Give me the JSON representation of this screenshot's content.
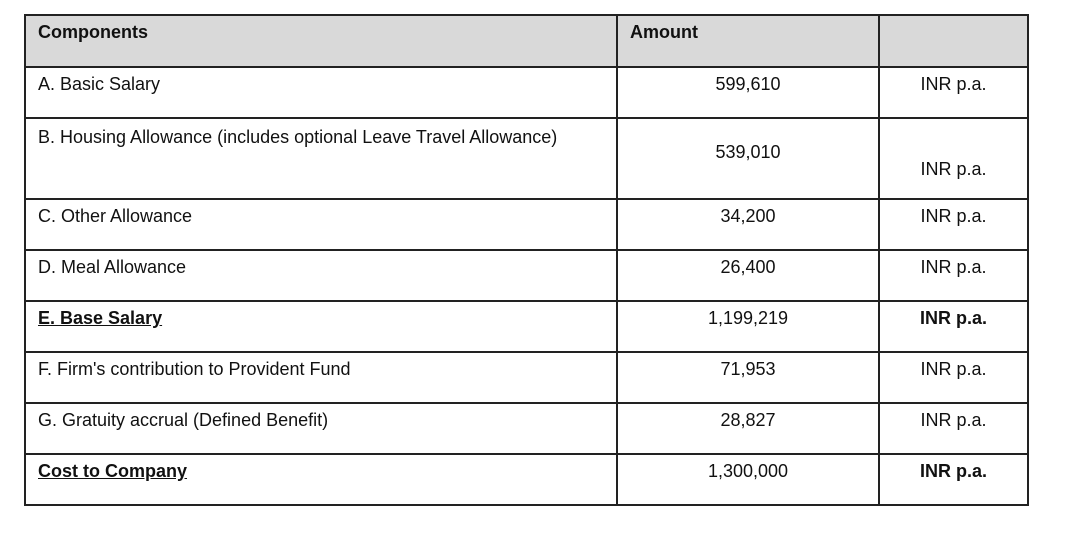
{
  "header": {
    "components": "Components",
    "amount": "Amount",
    "unit": ""
  },
  "rows": [
    {
      "component": "A. Basic Salary",
      "amount": "599,610",
      "unit": "INR p.a."
    },
    {
      "component": "B. Housing Allowance (includes optional Leave Travel Allowance)",
      "amount": "539,010",
      "unit": "INR p.a."
    },
    {
      "component": "C. Other Allowance",
      "amount": "34,200",
      "unit": "INR p.a."
    },
    {
      "component": "D. Meal Allowance",
      "amount": "26,400",
      "unit": "INR p.a."
    },
    {
      "component": "E. Base Salary",
      "amount": "1,199,219",
      "unit": "INR p.a."
    },
    {
      "component": "F. Firm's contribution to Provident Fund",
      "amount": "71,953",
      "unit": "INR p.a."
    },
    {
      "component": "G. Gratuity accrual (Defined Benefit)",
      "amount": "28,827",
      "unit": "INR p.a."
    },
    {
      "component": "Cost to Company",
      "amount": "1,300,000",
      "unit": "INR p.a."
    }
  ],
  "colors": {
    "header_bg": "#d9d9d9",
    "border": "#222222"
  }
}
